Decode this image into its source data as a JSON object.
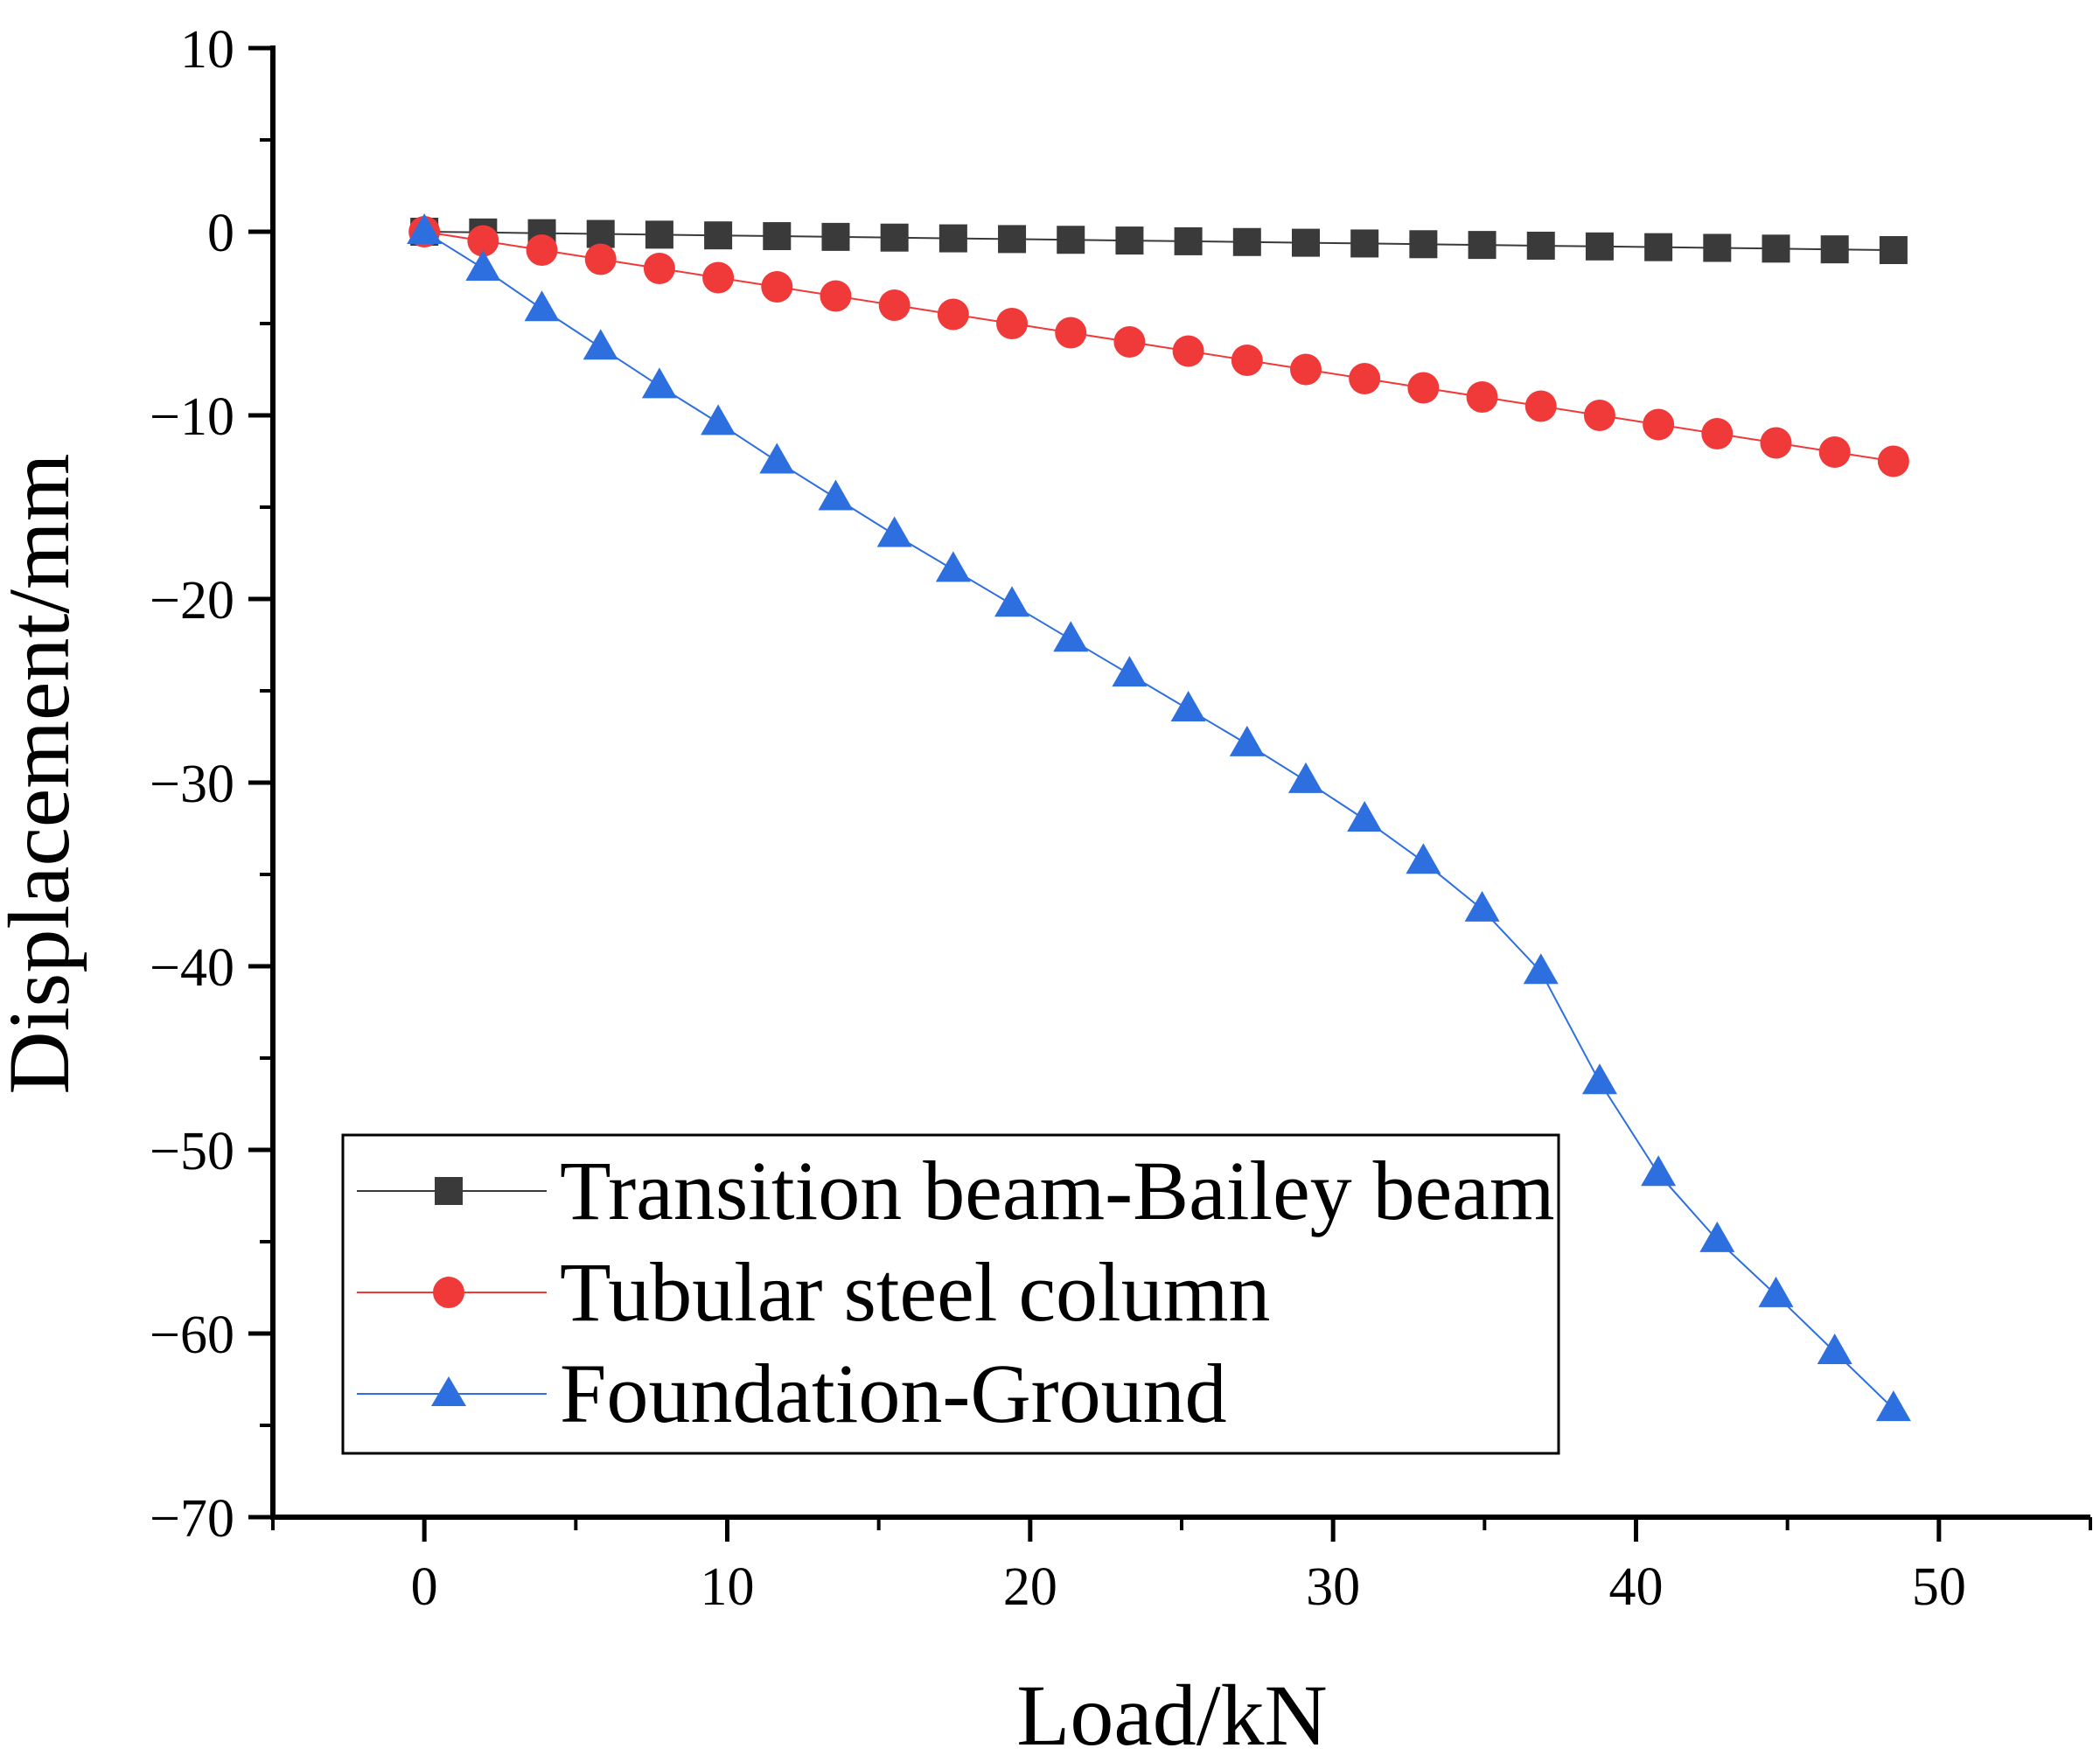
{
  "chart_data": {
    "type": "line",
    "title": "",
    "xlabel": "Load/kN",
    "ylabel": "Displacement/mm",
    "xlim": [
      -5,
      55
    ],
    "ylim": [
      -70,
      10
    ],
    "xticks": [
      0,
      10,
      20,
      30,
      40,
      50
    ],
    "yticks": [
      10,
      0,
      -10,
      -20,
      -30,
      -40,
      -50,
      -60,
      -70
    ],
    "x": [
      0,
      1.94,
      3.88,
      5.82,
      7.76,
      9.7,
      11.64,
      13.58,
      15.52,
      17.46,
      19.4,
      21.34,
      23.28,
      25.22,
      27.16,
      29.1,
      31.04,
      32.98,
      34.92,
      36.86,
      38.8,
      40.74,
      42.68,
      44.62,
      46.56,
      48.5
    ],
    "series": [
      {
        "name": "Transition beam-Bailey beam",
        "color": "#3a3a3a",
        "marker": "square",
        "values": [
          0,
          -0.04,
          -0.08,
          -0.12,
          -0.16,
          -0.2,
          -0.24,
          -0.28,
          -0.32,
          -0.36,
          -0.4,
          -0.44,
          -0.48,
          -0.52,
          -0.56,
          -0.6,
          -0.64,
          -0.68,
          -0.72,
          -0.76,
          -0.8,
          -0.84,
          -0.88,
          -0.92,
          -0.96,
          -1.0
        ]
      },
      {
        "name": "Tubular steel column",
        "color": "#f03a3a",
        "marker": "circle",
        "values": [
          0,
          -0.5,
          -1.0,
          -1.5,
          -2.0,
          -2.5,
          -3.0,
          -3.5,
          -4.0,
          -4.5,
          -5.0,
          -5.5,
          -6.0,
          -6.5,
          -7.0,
          -7.5,
          -8.0,
          -8.5,
          -9.0,
          -9.5,
          -10.0,
          -10.5,
          -11.0,
          -11.5,
          -12.0,
          -12.5
        ]
      },
      {
        "name": "Foundation-Ground",
        "color": "#2e6fe0",
        "marker": "triangle",
        "values": [
          0,
          -2.0,
          -4.2,
          -6.3,
          -8.4,
          -10.4,
          -12.5,
          -14.5,
          -16.5,
          -18.4,
          -20.3,
          -22.2,
          -24.1,
          -26.0,
          -27.9,
          -29.9,
          -32.0,
          -34.3,
          -36.9,
          -40.3,
          -46.3,
          -51.3,
          -54.9,
          -57.9,
          -61.0,
          -64.1
        ]
      }
    ],
    "legend_position": "bottom-left"
  }
}
